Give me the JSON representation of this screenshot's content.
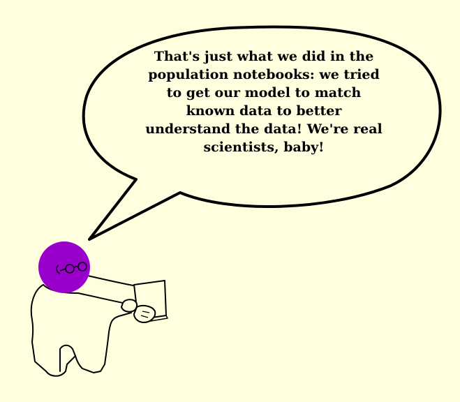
{
  "comic": {
    "speech_lines": [
      "That's just what we did in the",
      "population notebooks: we tried",
      "to get our model to match",
      "known data to better",
      "understand the data!  We're real",
      "scientists, baby!"
    ]
  },
  "colors": {
    "background": "#ffffe0",
    "head": "#9900cc",
    "outline": "#000000",
    "bubble_fill": "#ffffe0"
  },
  "icons": {
    "character": "stick-figure-with-purple-head",
    "held_item": "paper-sheet"
  }
}
